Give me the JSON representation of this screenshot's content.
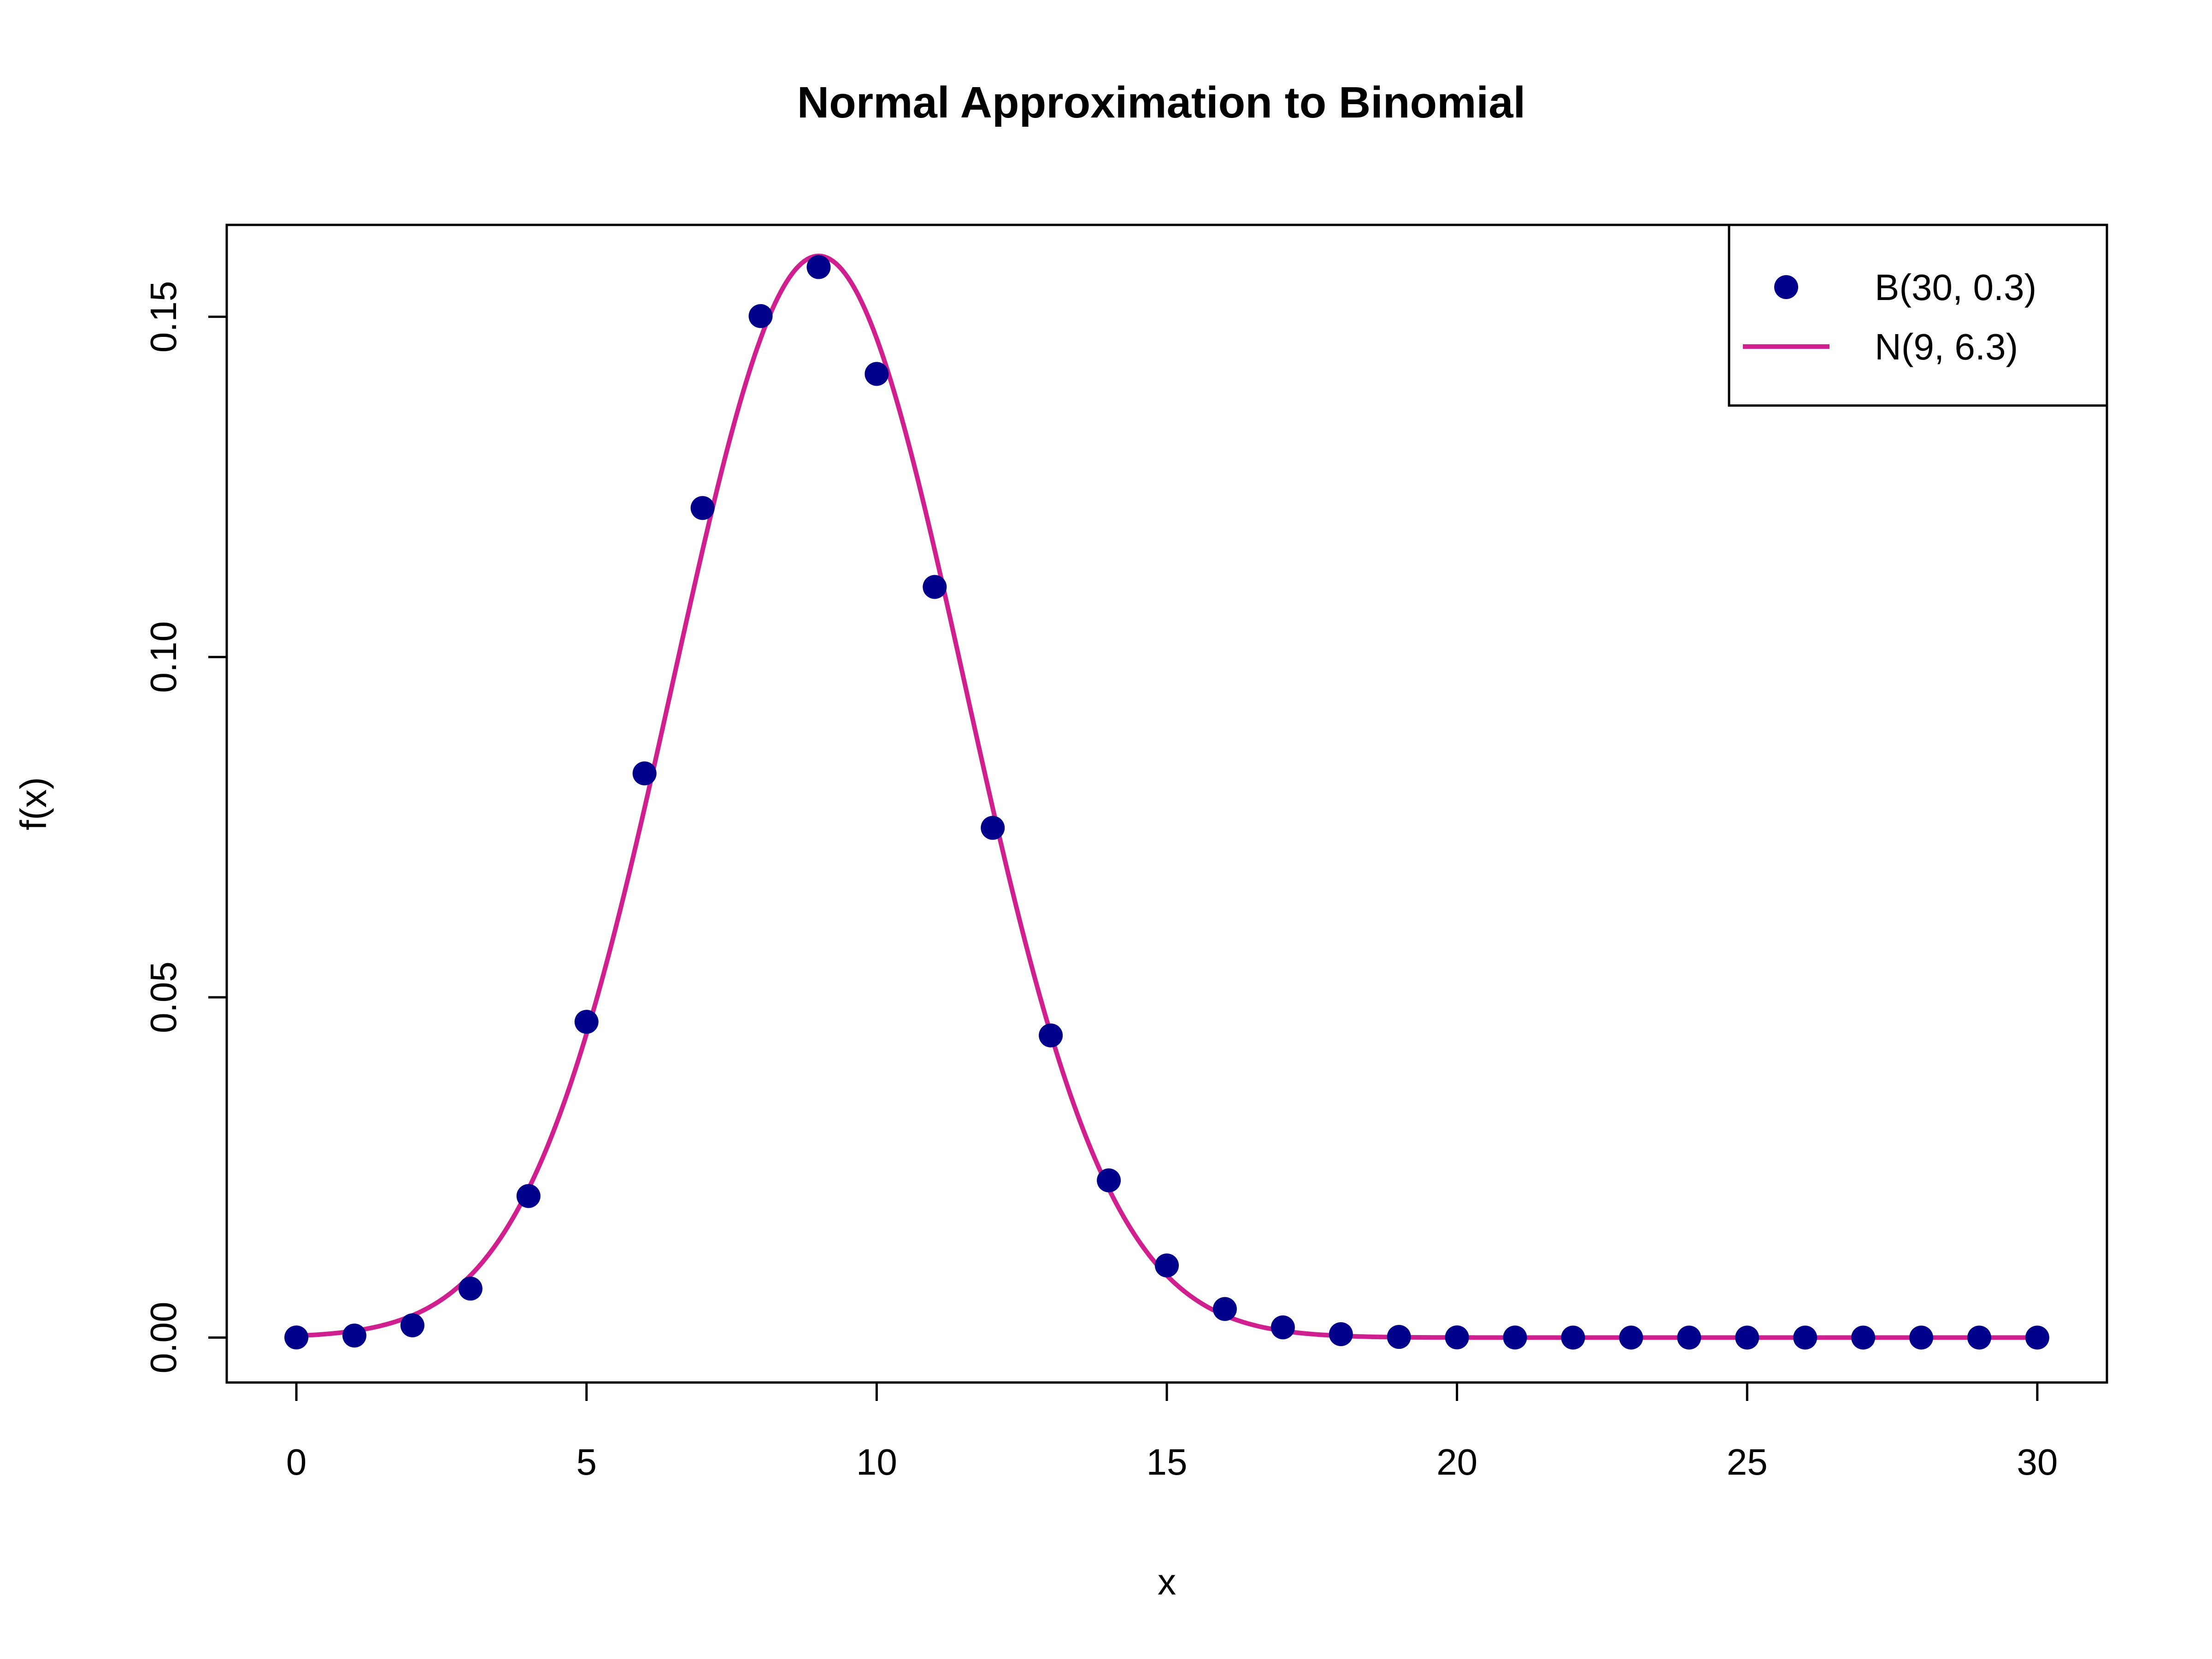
{
  "chart_data": {
    "type": "scatter",
    "title": "Normal Approximation to Binomial",
    "xlabel": "x",
    "ylabel": "f(x)",
    "xlim": [
      -1.2,
      31.2
    ],
    "ylim": [
      -0.0066,
      0.1635
    ],
    "x_ticks": [
      0,
      5,
      10,
      15,
      20,
      25,
      30
    ],
    "x_tick_labels": [
      "0",
      "5",
      "10",
      "15",
      "20",
      "25",
      "30"
    ],
    "y_ticks": [
      0.0,
      0.05,
      0.1,
      0.15
    ],
    "y_tick_labels": [
      "0.00",
      "0.05",
      "0.10",
      "0.15"
    ],
    "grid": false,
    "legend_position": "top-right",
    "series": [
      {
        "name": "B(30, 0.3)",
        "kind": "points",
        "color": "#00008B",
        "x": [
          0,
          1,
          2,
          3,
          4,
          5,
          6,
          7,
          8,
          9,
          10,
          11,
          12,
          13,
          14,
          15,
          16,
          17,
          18,
          19,
          20,
          21,
          22,
          23,
          24,
          25,
          26,
          27,
          28,
          29,
          30
        ],
        "y": [
          2e-05,
          0.0003,
          0.0018,
          0.0072,
          0.0208,
          0.0464,
          0.0829,
          0.1219,
          0.1501,
          0.1573,
          0.1416,
          0.1103,
          0.0749,
          0.0444,
          0.0231,
          0.0106,
          0.0042,
          0.0015,
          0.0005,
          0.0001,
          3e-05,
          1e-05,
          0.0,
          0.0,
          0.0,
          0.0,
          0.0,
          0.0,
          0.0,
          0.0,
          0.0
        ]
      },
      {
        "name": "N(9, 6.3)",
        "kind": "line",
        "color": "#D02090",
        "mean": 9,
        "variance": 6.3,
        "x_range": [
          0,
          30
        ]
      }
    ]
  }
}
